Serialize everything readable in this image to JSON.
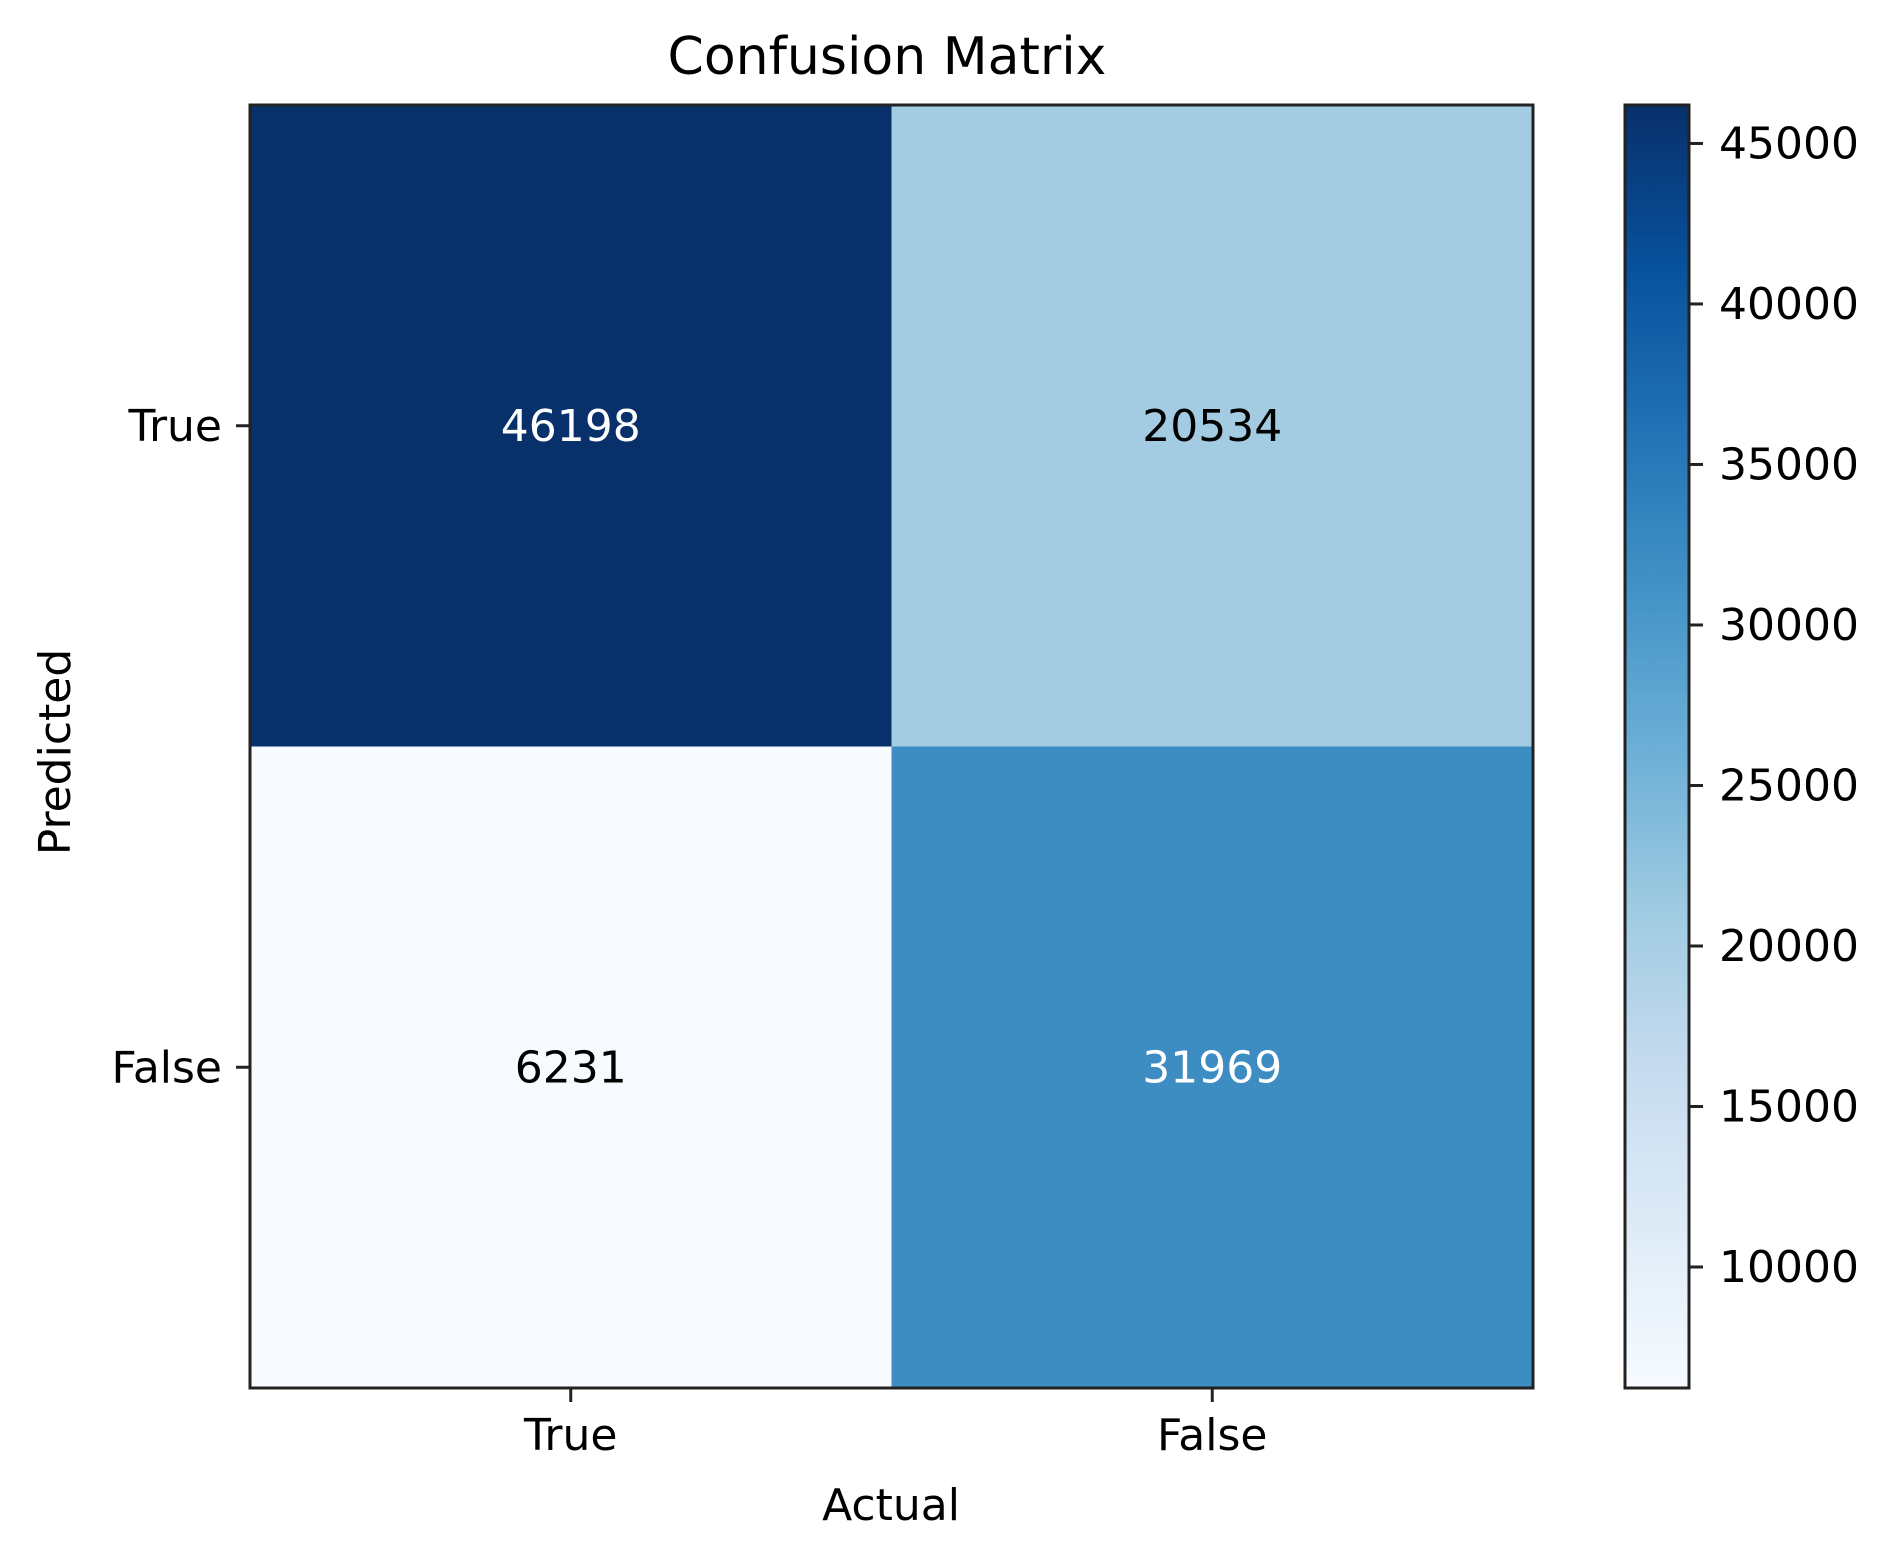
{
  "chart_data": {
    "type": "heatmap",
    "title": "Confusion Matrix",
    "xlabel": "Actual",
    "ylabel": "Predicted",
    "x_categories": [
      "True",
      "False"
    ],
    "y_categories": [
      "True",
      "False"
    ],
    "values": [
      [
        46198,
        20534
      ],
      [
        6231,
        31969
      ]
    ],
    "colormap": "Blues",
    "value_range": [
      6231,
      46198
    ],
    "colorbar": {
      "ticks": [
        10000,
        15000,
        20000,
        25000,
        30000,
        35000,
        40000,
        45000
      ],
      "tick_labels": [
        "10000",
        "15000",
        "20000",
        "25000",
        "30000",
        "35000",
        "40000",
        "45000"
      ]
    },
    "text_colors": {
      "dark_cell": "#ffffff",
      "light_cell": "#000000"
    }
  }
}
